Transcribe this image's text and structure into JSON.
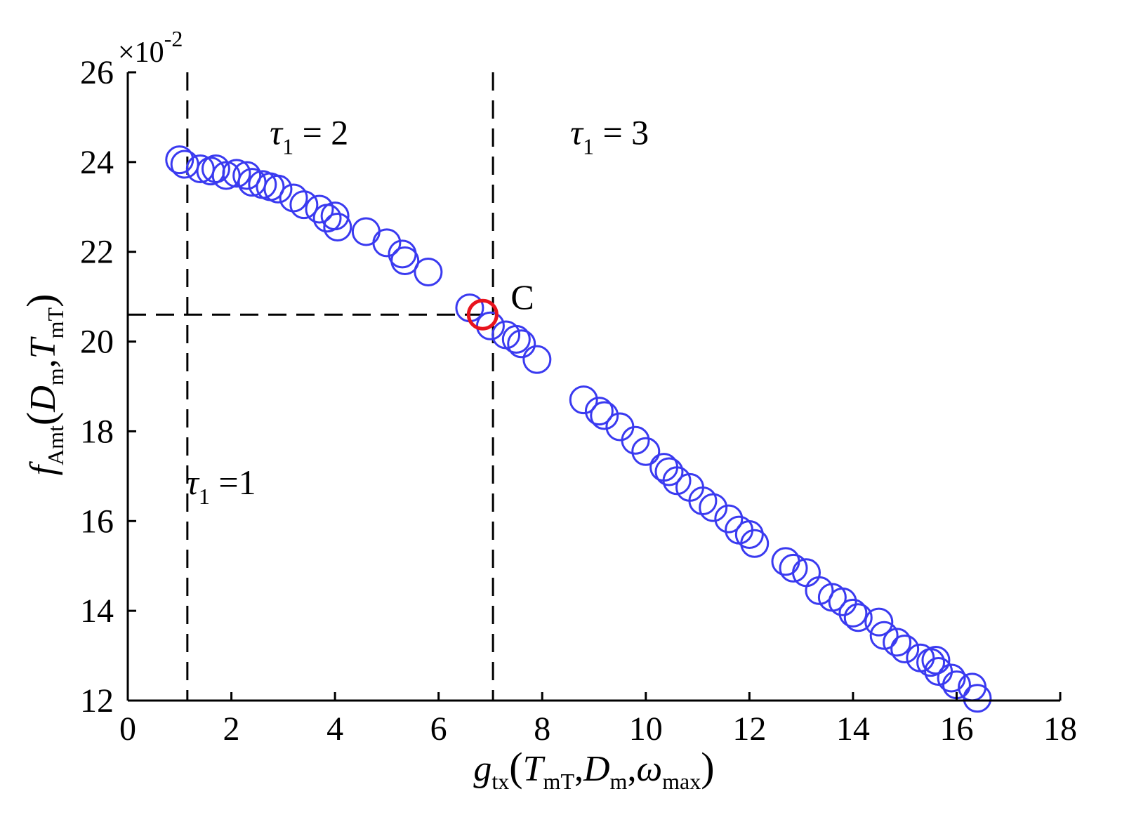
{
  "chart_data": {
    "type": "scatter",
    "title": "",
    "xlim": [
      0,
      18
    ],
    "ylim": [
      12,
      26
    ],
    "xticks": [
      0,
      2,
      4,
      6,
      8,
      10,
      12,
      14,
      16,
      18
    ],
    "yticks": [
      12,
      14,
      16,
      18,
      20,
      22,
      24,
      26
    ],
    "y_multiplier": "×10",
    "y_multiplier_exp": "-2",
    "xlabel": {
      "main": "g",
      "main_sub": "tx",
      "args": [
        {
          "base": "T",
          "sub": "mT"
        },
        {
          "base": "D",
          "sub": "m"
        },
        {
          "base": "ω",
          "sub": "max"
        }
      ]
    },
    "ylabel": {
      "main": "f",
      "main_sub": "Amt",
      "args": [
        {
          "base": "D",
          "sub": "m"
        },
        {
          "base": "T",
          "sub": "mT"
        }
      ]
    },
    "colors": {
      "series": "#3a3af0",
      "highlight": "#e8141e"
    },
    "series": [
      {
        "color": "#3a3af0",
        "points": [
          [
            1.0,
            24.05
          ],
          [
            1.1,
            23.95
          ],
          [
            1.4,
            23.85
          ],
          [
            1.6,
            23.8
          ],
          [
            1.7,
            23.85
          ],
          [
            1.9,
            23.7
          ],
          [
            2.1,
            23.75
          ],
          [
            2.3,
            23.7
          ],
          [
            2.4,
            23.55
          ],
          [
            2.6,
            23.5
          ],
          [
            2.75,
            23.45
          ],
          [
            2.9,
            23.4
          ],
          [
            3.2,
            23.2
          ],
          [
            3.4,
            23.05
          ],
          [
            3.7,
            22.95
          ],
          [
            3.85,
            22.75
          ],
          [
            4.0,
            22.8
          ],
          [
            4.05,
            22.55
          ],
          [
            4.6,
            22.45
          ],
          [
            5.0,
            22.2
          ],
          [
            5.3,
            21.95
          ],
          [
            5.35,
            21.8
          ],
          [
            5.8,
            21.55
          ],
          [
            6.6,
            20.75
          ],
          [
            7.0,
            20.35
          ],
          [
            7.3,
            20.15
          ],
          [
            7.5,
            20.05
          ],
          [
            7.6,
            19.95
          ],
          [
            7.9,
            19.6
          ],
          [
            8.8,
            18.7
          ],
          [
            9.1,
            18.45
          ],
          [
            9.2,
            18.35
          ],
          [
            9.5,
            18.1
          ],
          [
            9.8,
            17.8
          ],
          [
            10.0,
            17.55
          ],
          [
            10.35,
            17.2
          ],
          [
            10.45,
            17.1
          ],
          [
            10.6,
            16.9
          ],
          [
            10.85,
            16.75
          ],
          [
            11.1,
            16.45
          ],
          [
            11.3,
            16.3
          ],
          [
            11.6,
            16.05
          ],
          [
            11.8,
            15.8
          ],
          [
            12.0,
            15.7
          ],
          [
            12.1,
            15.5
          ],
          [
            12.7,
            15.1
          ],
          [
            12.85,
            14.95
          ],
          [
            13.1,
            14.85
          ],
          [
            13.35,
            14.45
          ],
          [
            13.6,
            14.3
          ],
          [
            13.8,
            14.2
          ],
          [
            14.0,
            13.95
          ],
          [
            14.1,
            13.85
          ],
          [
            14.5,
            13.75
          ],
          [
            14.6,
            13.45
          ],
          [
            14.85,
            13.3
          ],
          [
            15.0,
            13.15
          ],
          [
            15.3,
            12.95
          ],
          [
            15.5,
            12.85
          ],
          [
            15.6,
            12.9
          ],
          [
            15.65,
            12.65
          ],
          [
            15.9,
            12.5
          ],
          [
            16.0,
            12.35
          ],
          [
            16.3,
            12.3
          ],
          [
            16.4,
            12.05
          ]
        ]
      }
    ],
    "highlight_point": {
      "x": 6.85,
      "y": 20.6,
      "label": "C"
    },
    "reference_lines": {
      "vertical": [
        1.15,
        7.05
      ],
      "horizontal": {
        "y": 20.6,
        "x_from": 0,
        "x_to": 6.85
      }
    },
    "annotations": [
      {
        "sym": "τ",
        "sub": "1",
        "rel": " = 2",
        "x": 3.5,
        "y": 24.4
      },
      {
        "sym": "τ",
        "sub": "1",
        "rel": " = 3",
        "x": 9.3,
        "y": 24.4
      },
      {
        "sym": "τ",
        "sub": "1",
        "rel": " =1",
        "x": 1.8,
        "y": 16.6
      }
    ]
  }
}
